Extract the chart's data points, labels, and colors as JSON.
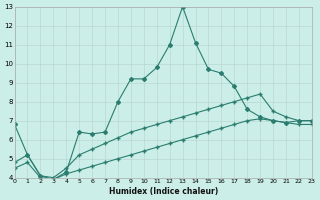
{
  "xlabel": "Humidex (Indice chaleur)",
  "bg_color": "#cceee8",
  "line_color": "#2a7d6f",
  "grid_color": "#b8d8d0",
  "xlim": [
    0,
    23
  ],
  "ylim": [
    4,
    13
  ],
  "xticks": [
    0,
    1,
    2,
    3,
    4,
    5,
    6,
    7,
    8,
    9,
    10,
    11,
    12,
    13,
    14,
    15,
    16,
    17,
    18,
    19,
    20,
    21,
    22,
    23
  ],
  "yticks": [
    4,
    5,
    6,
    7,
    8,
    9,
    10,
    11,
    12,
    13
  ],
  "line1_x": [
    0,
    1,
    2,
    3,
    4,
    5,
    6,
    7,
    8,
    9,
    10,
    11,
    12,
    13,
    14,
    15,
    16,
    17,
    18,
    19,
    20,
    21,
    22,
    23
  ],
  "line1_y": [
    6.8,
    5.2,
    4.1,
    3.9,
    4.3,
    6.4,
    6.3,
    6.4,
    8.0,
    9.2,
    9.2,
    9.8,
    11.0,
    13.0,
    11.1,
    9.7,
    9.5,
    8.8,
    7.6,
    7.2,
    7.0,
    6.9,
    7.0,
    7.0
  ],
  "line2_x": [
    0,
    1,
    2,
    3,
    4,
    5,
    6,
    7,
    8,
    9,
    10,
    11,
    12,
    13,
    14,
    15,
    16,
    17,
    18,
    19,
    20,
    21,
    22,
    23
  ],
  "line2_y": [
    4.8,
    5.2,
    4.1,
    4.0,
    4.5,
    5.2,
    5.5,
    5.8,
    6.1,
    6.4,
    6.6,
    6.8,
    7.0,
    7.2,
    7.4,
    7.6,
    7.8,
    8.0,
    8.2,
    8.4,
    7.5,
    7.2,
    7.0,
    7.0
  ],
  "line3_x": [
    0,
    1,
    2,
    3,
    4,
    5,
    6,
    7,
    8,
    9,
    10,
    11,
    12,
    13,
    14,
    15,
    16,
    17,
    18,
    19,
    20,
    21,
    22,
    23
  ],
  "line3_y": [
    4.5,
    4.8,
    4.0,
    3.9,
    4.2,
    4.4,
    4.6,
    4.8,
    5.0,
    5.2,
    5.4,
    5.6,
    5.8,
    6.0,
    6.2,
    6.4,
    6.6,
    6.8,
    7.0,
    7.1,
    7.0,
    6.9,
    6.8,
    6.8
  ]
}
